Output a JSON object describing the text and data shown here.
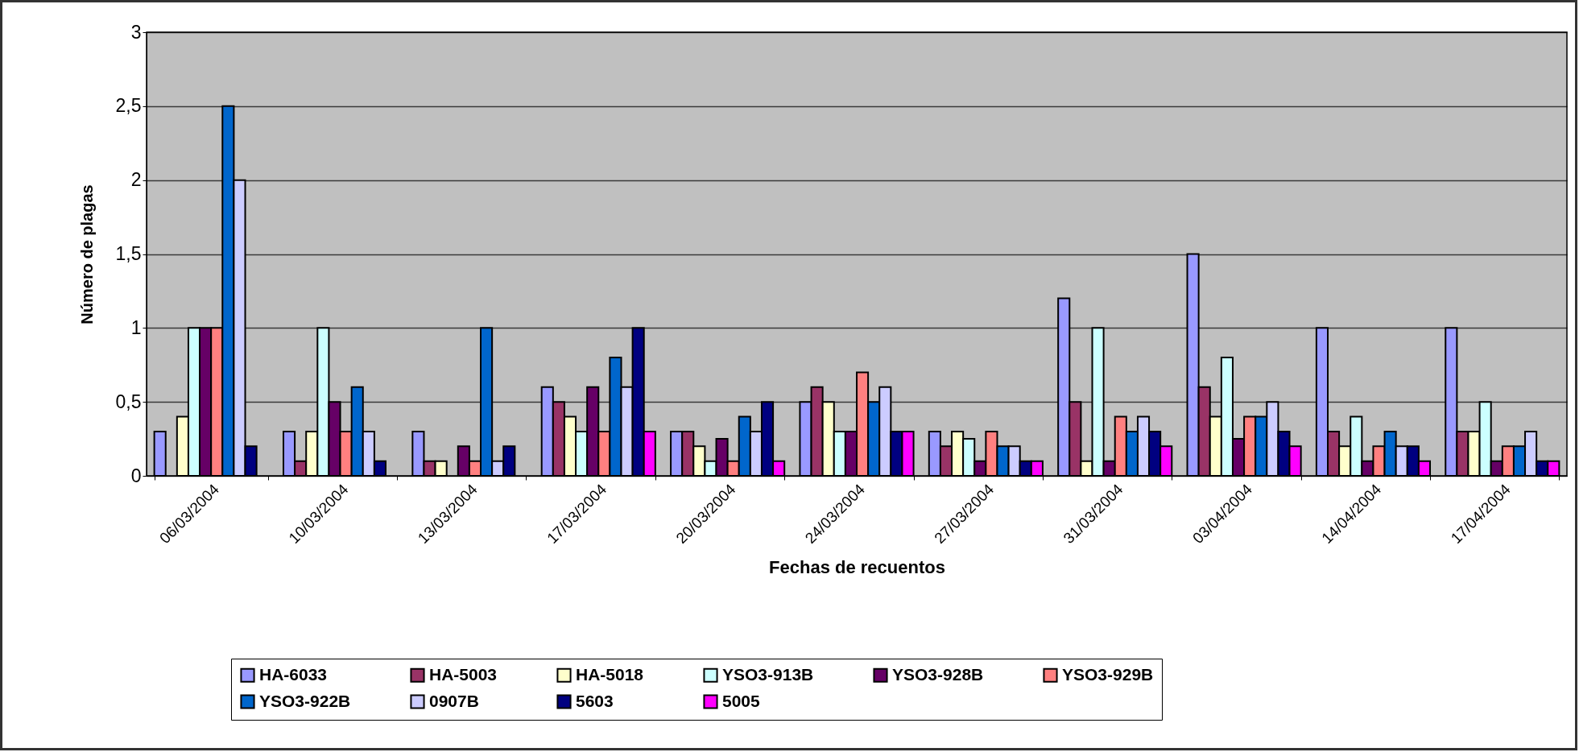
{
  "chart_data": {
    "type": "bar",
    "xlabel": "Fechas de recuentos",
    "ylabel": "Número de plagas",
    "categories": [
      "06/03/2004",
      "10/03/2004",
      "13/03/2004",
      "17/03/2004",
      "20/03/2004",
      "24/03/2004",
      "27/03/2004",
      "31/03/2004",
      "03/04/2004",
      "14/04/2004",
      "17/04/2004"
    ],
    "series": [
      {
        "name": "HA-6033",
        "color": "#9999ff",
        "values": [
          0.3,
          0.3,
          0.3,
          0.6,
          0.3,
          0.5,
          0.3,
          1.2,
          1.5,
          1,
          1
        ]
      },
      {
        "name": "HA-5003",
        "color": "#993366",
        "values": [
          null,
          0.1,
          0.1,
          0.5,
          0.3,
          0.6,
          0.2,
          0.5,
          0.6,
          0.3,
          0.3
        ]
      },
      {
        "name": "HA-5018",
        "color": "#ffffcc",
        "values": [
          0.4,
          0.3,
          0.1,
          0.4,
          0.2,
          0.5,
          0.3,
          0.1,
          0.4,
          0.2,
          0.3
        ]
      },
      {
        "name": "YSO3-913B",
        "color": "#ccffff",
        "values": [
          1,
          1,
          null,
          0.3,
          0.1,
          0.3,
          0.25,
          1,
          0.8,
          0.4,
          0.5
        ]
      },
      {
        "name": "YSO3-928B",
        "color": "#660066",
        "values": [
          1,
          0.5,
          0.2,
          0.6,
          0.25,
          0.3,
          0.1,
          0.1,
          0.25,
          0.1,
          0.1
        ]
      },
      {
        "name": "YSO3-929B",
        "color": "#ff8080",
        "values": [
          1,
          0.3,
          0.1,
          0.3,
          0.1,
          0.7,
          0.3,
          0.4,
          0.4,
          0.2,
          0.2
        ]
      },
      {
        "name": "YSO3-922B",
        "color": "#0066cc",
        "values": [
          2.5,
          0.6,
          1,
          0.8,
          0.4,
          0.5,
          0.2,
          0.3,
          0.4,
          0.3,
          0.2
        ]
      },
      {
        "name": "0907B",
        "color": "#ccccff",
        "values": [
          2,
          0.3,
          0.1,
          0.6,
          0.3,
          0.6,
          0.2,
          0.4,
          0.5,
          0.2,
          0.3
        ]
      },
      {
        "name": "5603",
        "color": "#000080",
        "values": [
          0.2,
          0.1,
          0.2,
          1,
          0.5,
          0.3,
          0.1,
          0.3,
          0.3,
          0.2,
          0.1
        ]
      },
      {
        "name": "5005",
        "color": "#ff00ff",
        "values": [
          null,
          null,
          null,
          0.3,
          0.1,
          0.3,
          0.1,
          0.2,
          0.2,
          0.1,
          0.1
        ]
      }
    ],
    "ylim": [
      0,
      3
    ],
    "yticks": [
      0,
      {
        "value": 0.5,
        "label": "0,5"
      },
      1,
      {
        "value": 1.5,
        "label": "1,5"
      },
      2,
      {
        "value": 2.5,
        "label": "2,5"
      },
      3
    ],
    "grid": "y",
    "legend": "bottom"
  }
}
